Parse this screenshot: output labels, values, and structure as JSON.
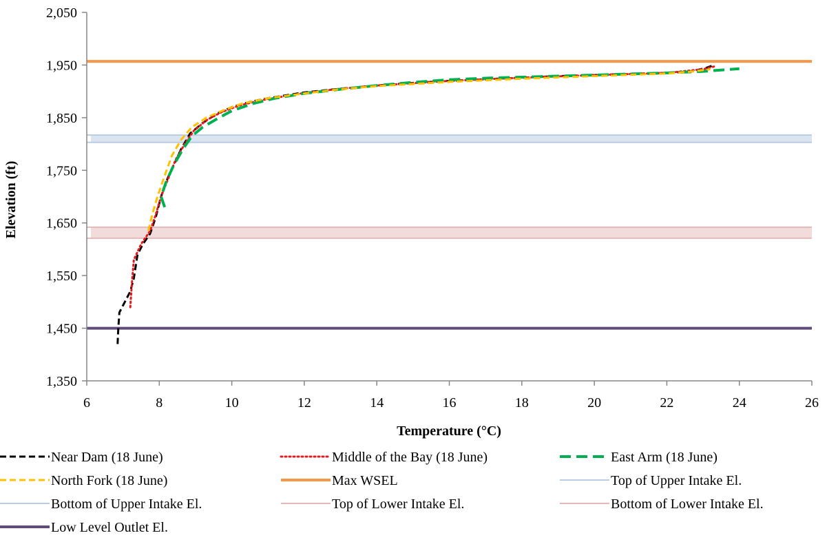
{
  "chart_data": {
    "type": "line",
    "title": "",
    "xlabel": "Temperature (°C)",
    "ylabel": "Elevation (ft)",
    "xlim": [
      6,
      26
    ],
    "ylim": [
      1350,
      2050
    ],
    "x_ticks": [
      "6",
      "8",
      "10",
      "12",
      "14",
      "16",
      "18",
      "20",
      "22",
      "24",
      "26"
    ],
    "y_ticks": [
      "1,350",
      "1,450",
      "1,550",
      "1,650",
      "1,750",
      "1,850",
      "1,950",
      "2,050"
    ],
    "grid": false,
    "legend_position": "bottom",
    "series": [
      {
        "name": "Near Dam (18 June)",
        "color": "#000000",
        "style": "dashed",
        "points": [
          [
            6.85,
            1420
          ],
          [
            6.87,
            1450
          ],
          [
            6.9,
            1480
          ],
          [
            7.05,
            1500
          ],
          [
            7.2,
            1520
          ],
          [
            7.3,
            1545
          ],
          [
            7.4,
            1590
          ],
          [
            7.55,
            1610
          ],
          [
            7.75,
            1630
          ],
          [
            7.9,
            1660
          ],
          [
            8.05,
            1700
          ],
          [
            8.2,
            1730
          ],
          [
            8.4,
            1760
          ],
          [
            8.6,
            1790
          ],
          [
            8.85,
            1820
          ],
          [
            9.2,
            1840
          ],
          [
            9.6,
            1858
          ],
          [
            10.0,
            1870
          ],
          [
            10.5,
            1880
          ],
          [
            11.0,
            1887
          ],
          [
            12.0,
            1898
          ],
          [
            13.0,
            1905
          ],
          [
            14.0,
            1911
          ],
          [
            15.0,
            1916
          ],
          [
            16.0,
            1920
          ],
          [
            17.0,
            1923
          ],
          [
            18.0,
            1926
          ],
          [
            19.0,
            1929
          ],
          [
            20.0,
            1931
          ],
          [
            21.0,
            1933
          ],
          [
            22.0,
            1935
          ],
          [
            22.7,
            1938
          ],
          [
            23.1,
            1945
          ],
          [
            23.3,
            1950
          ]
        ]
      },
      {
        "name": "Middle of the Bay (18 June)",
        "color": "#e31a1c",
        "style": "dotted",
        "points": [
          [
            7.2,
            1490
          ],
          [
            7.25,
            1540
          ],
          [
            7.3,
            1580
          ],
          [
            7.5,
            1610
          ],
          [
            7.75,
            1635
          ],
          [
            7.9,
            1665
          ],
          [
            8.05,
            1700
          ],
          [
            8.25,
            1735
          ],
          [
            8.45,
            1770
          ],
          [
            8.7,
            1800
          ],
          [
            8.95,
            1825
          ],
          [
            9.3,
            1845
          ],
          [
            9.7,
            1860
          ],
          [
            10.2,
            1873
          ],
          [
            10.8,
            1883
          ],
          [
            12.0,
            1897
          ],
          [
            13.0,
            1905
          ],
          [
            14.0,
            1911
          ],
          [
            16.0,
            1920
          ],
          [
            18.0,
            1926
          ],
          [
            20.0,
            1931
          ],
          [
            22.0,
            1935
          ],
          [
            23.0,
            1942
          ],
          [
            23.35,
            1948
          ]
        ]
      },
      {
        "name": "East Arm (18 June)",
        "color": "#00b050",
        "style": "long-dashed",
        "points": [
          [
            8.15,
            1680
          ],
          [
            8.05,
            1700
          ],
          [
            8.2,
            1730
          ],
          [
            8.4,
            1760
          ],
          [
            8.65,
            1790
          ],
          [
            8.9,
            1815
          ],
          [
            9.2,
            1832
          ],
          [
            9.6,
            1848
          ],
          [
            10.0,
            1863
          ],
          [
            10.6,
            1877
          ],
          [
            11.2,
            1887
          ],
          [
            12.0,
            1896
          ],
          [
            13.0,
            1904
          ],
          [
            14.0,
            1911
          ],
          [
            15.0,
            1917
          ],
          [
            16.0,
            1922
          ],
          [
            17.0,
            1925
          ],
          [
            18.0,
            1927
          ],
          [
            19.0,
            1929
          ],
          [
            20.0,
            1931
          ],
          [
            21.0,
            1933
          ],
          [
            22.0,
            1935
          ],
          [
            23.0,
            1938
          ],
          [
            24.0,
            1943
          ]
        ]
      },
      {
        "name": "North Fork (18 June)",
        "color": "#ffc000",
        "style": "dashed",
        "points": [
          [
            7.7,
            1635
          ],
          [
            7.8,
            1665
          ],
          [
            7.95,
            1700
          ],
          [
            8.15,
            1740
          ],
          [
            8.35,
            1778
          ],
          [
            8.6,
            1808
          ],
          [
            8.9,
            1832
          ],
          [
            9.3,
            1850
          ],
          [
            9.8,
            1865
          ],
          [
            10.3,
            1877
          ],
          [
            11.0,
            1887
          ],
          [
            12.0,
            1896
          ],
          [
            13.0,
            1904
          ],
          [
            14.0,
            1910
          ],
          [
            16.0,
            1918
          ],
          [
            18.0,
            1924
          ],
          [
            20.0,
            1929
          ],
          [
            22.0,
            1934
          ],
          [
            22.6,
            1937
          ],
          [
            23.2,
            1942
          ]
        ]
      }
    ],
    "reference_lines": [
      {
        "name": "Max WSEL",
        "value": 1957,
        "color": "#f79646",
        "width": 4
      },
      {
        "name": "Top of Upper Intake El.",
        "value": 1817,
        "color": "#b8cce4",
        "width": 2
      },
      {
        "name": "Bottom of Upper Intake El.",
        "value": 1803,
        "color": "#b8cce4",
        "width": 2
      },
      {
        "name": "Top of Lower Intake El.",
        "value": 1642,
        "color": "#e6b9b8",
        "width": 2
      },
      {
        "name": "Bottom of Lower Intake El.",
        "value": 1621,
        "color": "#e6b9b8",
        "width": 2
      },
      {
        "name": "Low Level Outlet El.",
        "value": 1450,
        "color": "#604a7b",
        "width": 4
      }
    ],
    "bands": [
      {
        "from": 1803,
        "to": 1817,
        "color": "#dbe5f1"
      },
      {
        "from": 1621,
        "to": 1642,
        "color": "#f2dcdb"
      }
    ],
    "legend": [
      {
        "label": "Near Dam (18 June)",
        "color": "#000000",
        "style": "dashed",
        "thick": 3
      },
      {
        "label": "Middle of the Bay (18 June)",
        "color": "#e31a1c",
        "style": "dotted",
        "thick": 3
      },
      {
        "label": "East Arm (18 June)",
        "color": "#00b050",
        "style": "long-dashed",
        "thick": 4
      },
      {
        "label": "North Fork (18 June)",
        "color": "#ffc000",
        "style": "dashed",
        "thick": 3
      },
      {
        "label": "Max WSEL",
        "color": "#f79646",
        "style": "solid",
        "thick": 4
      },
      {
        "label": "Top of Upper Intake El.",
        "color": "#b8cce4",
        "style": "solid",
        "thick": 2
      },
      {
        "label": "Bottom of Upper Intake El.",
        "color": "#b8cce4",
        "style": "solid",
        "thick": 2
      },
      {
        "label": "Top of Lower Intake El.",
        "color": "#e6b9b8",
        "style": "solid",
        "thick": 2
      },
      {
        "label": "Bottom of Lower Intake El.",
        "color": "#e6b9b8",
        "style": "solid",
        "thick": 2
      },
      {
        "label": "Low Level Outlet El.",
        "color": "#604a7b",
        "style": "solid",
        "thick": 4
      }
    ]
  }
}
